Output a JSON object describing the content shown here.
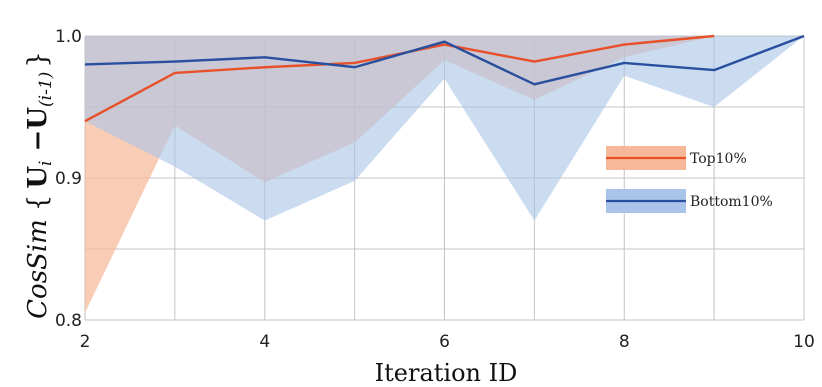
{
  "chart_data": {
    "type": "line",
    "xlabel": "Iteration ID",
    "ylabel": {
      "prefix": "CosSim",
      "open_brace": "{",
      "u1": "U",
      "sub1": "i",
      "minus": " −",
      "u2": "U",
      "sub2": "(i-1)",
      "close_brace": "}"
    },
    "xlim": [
      2,
      10
    ],
    "ylim": [
      0.8,
      1.0
    ],
    "x_ticks": [
      2,
      4,
      6,
      8,
      10
    ],
    "y_ticks": [
      0.8,
      0.9,
      1.0
    ],
    "y_tick_labels": [
      "0.8",
      "0.9",
      "1.0"
    ],
    "grid": true,
    "legend_position": "right",
    "series": [
      {
        "name": "Top10%",
        "color": "#e8502a",
        "band_color": "#f7b89a",
        "x": [
          2,
          3,
          4,
          5,
          6,
          7,
          8,
          9
        ],
        "values": [
          0.94,
          0.974,
          0.978,
          0.981,
          0.994,
          0.982,
          0.994,
          1.0
        ],
        "band_upper": [
          1.0,
          1.0,
          1.0,
          1.0,
          1.0,
          1.0,
          1.0,
          1.0
        ],
        "band_lower": [
          0.805,
          0.937,
          0.897,
          0.925,
          0.983,
          0.955,
          0.985,
          1.0
        ]
      },
      {
        "name": "Bottom10%",
        "color": "#2a4f9e",
        "band_color": "#a9c4e8",
        "x": [
          2,
          3,
          4,
          5,
          6,
          7,
          8,
          9,
          10
        ],
        "values": [
          0.98,
          0.982,
          0.985,
          0.978,
          0.996,
          0.966,
          0.981,
          0.976,
          1.0
        ],
        "band_upper": [
          1.0,
          1.0,
          1.0,
          1.0,
          1.0,
          1.0,
          1.0,
          1.0,
          1.0
        ],
        "band_lower": [
          0.94,
          0.908,
          0.87,
          0.898,
          0.97,
          0.87,
          0.972,
          0.95,
          1.0
        ]
      }
    ]
  }
}
